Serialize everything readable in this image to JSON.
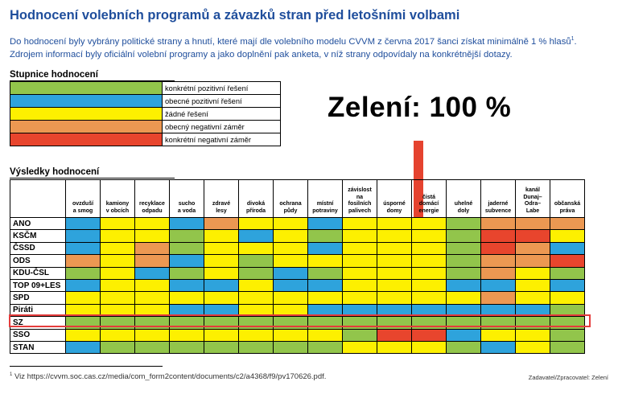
{
  "title": "Hodnocení volebních programů a závazků stran před letošními volbami",
  "intro": {
    "line1": "Do hodnocení byly vybrány politické strany a hnutí, které mají dle volebního modelu CVVM z června 2017 šanci získat minimálně 1 % hlasů",
    "line1_sup": "1",
    "line1_end": ".",
    "line2": "Zdrojem informací byly oficiální volební programy a jako doplnění pak anketa, v níž strany odpovídaly na konkrétnější dotazy."
  },
  "scale": {
    "heading": "Stupnice hodnocení",
    "items": [
      {
        "color": "#92c54b",
        "label": "konkrétní pozitivní řešení"
      },
      {
        "color": "#2ea3dc",
        "label": "obecné pozitivní řešení"
      },
      {
        "color": "#fdf000",
        "label": "žádné řešení"
      },
      {
        "color": "#ec9852",
        "label": "obecný negativní záměr"
      },
      {
        "color": "#e8452d",
        "label": "konkrétní negativní záměr"
      }
    ]
  },
  "callout": "Zelení: 100 %",
  "results": {
    "heading": "Výsledky hodnocení",
    "columns": [
      [
        "ovzduší",
        "a smog"
      ],
      [
        "kamiony",
        "v obcích"
      ],
      [
        "recyklace",
        "odpadu"
      ],
      [
        "sucho",
        "a voda"
      ],
      [
        "zdravé",
        "lesy"
      ],
      [
        "divoká",
        "příroda"
      ],
      [
        "ochrana",
        "půdy"
      ],
      [
        "místní",
        "potraviny"
      ],
      [
        "závislost",
        "na",
        "fosilních",
        "palivech"
      ],
      [
        "úsporné",
        "domy"
      ],
      [
        "čistá",
        "domácí",
        "energie"
      ],
      [
        "uhelné",
        "doly"
      ],
      [
        "jaderné",
        "subvence"
      ],
      [
        "kanál",
        "Dunaj–",
        "Odra–",
        "Labe"
      ],
      [
        "občanská",
        "práva"
      ]
    ],
    "color_codes": {
      "g": "#92c54b",
      "b": "#2ea3dc",
      "y": "#fdf000",
      "o": "#ec9852",
      "r": "#e8452d"
    },
    "rows": [
      {
        "party": "ANO",
        "cells": [
          "b",
          "y",
          "y",
          "b",
          "o",
          "y",
          "y",
          "b",
          "y",
          "y",
          "y",
          "g",
          "o",
          "o",
          "o"
        ]
      },
      {
        "party": "KSČM",
        "cells": [
          "b",
          "y",
          "y",
          "g",
          "y",
          "b",
          "y",
          "g",
          "y",
          "y",
          "y",
          "g",
          "r",
          "r",
          "y"
        ]
      },
      {
        "party": "ČSSD",
        "cells": [
          "b",
          "y",
          "o",
          "g",
          "y",
          "y",
          "y",
          "b",
          "y",
          "y",
          "y",
          "g",
          "r",
          "o",
          "b"
        ]
      },
      {
        "party": "ODS",
        "cells": [
          "o",
          "y",
          "o",
          "b",
          "y",
          "g",
          "y",
          "y",
          "y",
          "y",
          "y",
          "g",
          "o",
          "o",
          "r"
        ]
      },
      {
        "party": "KDU-ČSL",
        "cells": [
          "g",
          "y",
          "b",
          "g",
          "y",
          "g",
          "b",
          "g",
          "y",
          "y",
          "y",
          "g",
          "o",
          "y",
          "g"
        ]
      },
      {
        "party": "TOP 09+LES",
        "cells": [
          "b",
          "y",
          "y",
          "b",
          "b",
          "y",
          "b",
          "b",
          "y",
          "y",
          "y",
          "b",
          "b",
          "y",
          "b"
        ]
      },
      {
        "party": "SPD",
        "cells": [
          "y",
          "y",
          "y",
          "y",
          "y",
          "y",
          "y",
          "y",
          "y",
          "y",
          "y",
          "y",
          "o",
          "y",
          "y"
        ]
      },
      {
        "party": "Piráti",
        "cells": [
          "y",
          "y",
          "y",
          "b",
          "b",
          "y",
          "y",
          "b",
          "b",
          "b",
          "b",
          "b",
          "b",
          "b",
          "g"
        ]
      },
      {
        "party": "SZ",
        "cells": [
          "g",
          "g",
          "g",
          "g",
          "g",
          "g",
          "g",
          "g",
          "g",
          "g",
          "g",
          "g",
          "g",
          "g",
          "g"
        ]
      },
      {
        "party": "SSO",
        "cells": [
          "y",
          "y",
          "y",
          "y",
          "y",
          "y",
          "y",
          "y",
          "g",
          "r",
          "r",
          "b",
          "y",
          "y",
          "g"
        ]
      },
      {
        "party": "STAN",
        "cells": [
          "b",
          "g",
          "g",
          "g",
          "g",
          "g",
          "g",
          "g",
          "y",
          "y",
          "y",
          "g",
          "b",
          "y",
          "g"
        ]
      }
    ],
    "highlight_party": "SZ"
  },
  "footnote": {
    "sup": "1",
    "text": " Viz https://cvvm.soc.cas.cz/media/com_form2content/documents/c2/a4368/f9/pv170626.pdf."
  },
  "credit": "Zadavatel/Zpracovatel: Zelení",
  "colors": {
    "title": "#1f4e9c",
    "highlight": "#e53c3c",
    "arrow": "#e5432f"
  }
}
